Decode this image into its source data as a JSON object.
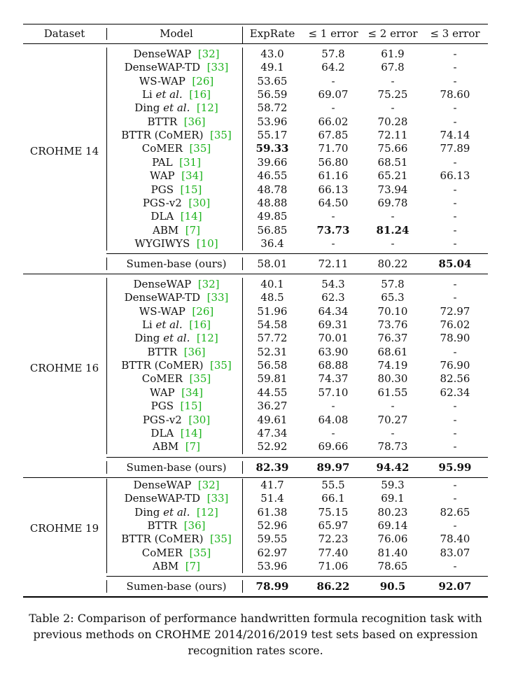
{
  "table": {
    "headers": [
      "Dataset",
      "Model",
      "ExpRate",
      "≤ 1 error",
      "≤ 2 error",
      "≤ 3 error"
    ],
    "sections": [
      {
        "dataset": "CROHME 14",
        "rows": [
          {
            "model": "DenseWAP",
            "cite": "32",
            "values": [
              "43.0",
              "57.8",
              "61.9",
              "-"
            ]
          },
          {
            "model": "DenseWAP-TD",
            "cite": "33",
            "values": [
              "49.1",
              "64.2",
              "67.8",
              "-"
            ]
          },
          {
            "model": "WS-WAP",
            "cite": "26",
            "values": [
              "53.65",
              "-",
              "-",
              "-"
            ]
          },
          {
            "model": "Li et al.",
            "cite": "16",
            "values": [
              "56.59",
              "69.07",
              "75.25",
              "78.60"
            ]
          },
          {
            "model": "Ding et al.",
            "cite": "12",
            "values": [
              "58.72",
              "-",
              "-",
              "-"
            ]
          },
          {
            "model": "BTTR",
            "cite": "36",
            "values": [
              "53.96",
              "66.02",
              "70.28",
              "-"
            ]
          },
          {
            "model": "BTTR (CoMER)",
            "cite": "35",
            "values": [
              "55.17",
              "67.85",
              "72.11",
              "74.14"
            ]
          },
          {
            "model": "CoMER",
            "cite": "35",
            "values": [
              "59.33",
              "71.70",
              "75.66",
              "77.89"
            ],
            "bold": [
              0
            ]
          },
          {
            "model": "PAL",
            "cite": "31",
            "values": [
              "39.66",
              "56.80",
              "68.51",
              "-"
            ]
          },
          {
            "model": "WAP",
            "cite": "34",
            "values": [
              "46.55",
              "61.16",
              "65.21",
              "66.13"
            ]
          },
          {
            "model": "PGS",
            "cite": "15",
            "values": [
              "48.78",
              "66.13",
              "73.94",
              "-"
            ]
          },
          {
            "model": "PGS-v2",
            "cite": "30",
            "values": [
              "48.88",
              "64.50",
              "69.78",
              "-"
            ]
          },
          {
            "model": "DLA",
            "cite": "14",
            "values": [
              "49.85",
              "-",
              "-",
              "-"
            ]
          },
          {
            "model": "ABM",
            "cite": "7",
            "values": [
              "56.85",
              "73.73",
              "81.24",
              "-"
            ],
            "bold": [
              1,
              2
            ]
          },
          {
            "model": "WYGIWYS",
            "cite": "10",
            "values": [
              "36.4",
              "-",
              "-",
              "-"
            ]
          }
        ],
        "ours": {
          "model": "Sumen-base (ours)",
          "values": [
            "58.01",
            "72.11",
            "80.22",
            "85.04"
          ],
          "bold": [
            3
          ]
        }
      },
      {
        "dataset": "CROHME 16",
        "rows": [
          {
            "model": "DenseWAP",
            "cite": "32",
            "values": [
              "40.1",
              "54.3",
              "57.8",
              "-"
            ]
          },
          {
            "model": "DenseWAP-TD",
            "cite": "33",
            "values": [
              "48.5",
              "62.3",
              "65.3",
              "-"
            ]
          },
          {
            "model": "WS-WAP",
            "cite": "26",
            "values": [
              "51.96",
              "64.34",
              "70.10",
              "72.97"
            ]
          },
          {
            "model": "Li et al.",
            "cite": "16",
            "values": [
              "54.58",
              "69.31",
              "73.76",
              "76.02"
            ]
          },
          {
            "model": "Ding et al.",
            "cite": "12",
            "values": [
              "57.72",
              "70.01",
              "76.37",
              "78.90"
            ]
          },
          {
            "model": "BTTR",
            "cite": "36",
            "values": [
              "52.31",
              "63.90",
              "68.61",
              "-"
            ]
          },
          {
            "model": "BTTR (CoMER)",
            "cite": "35",
            "values": [
              "56.58",
              "68.88",
              "74.19",
              "76.90"
            ]
          },
          {
            "model": "CoMER",
            "cite": "35",
            "values": [
              "59.81",
              "74.37",
              "80.30",
              "82.56"
            ]
          },
          {
            "model": "WAP",
            "cite": "34",
            "values": [
              "44.55",
              "57.10",
              "61.55",
              "62.34"
            ]
          },
          {
            "model": "PGS",
            "cite": "15",
            "values": [
              "36.27",
              "-",
              "-",
              "-"
            ]
          },
          {
            "model": "PGS-v2",
            "cite": "30",
            "values": [
              "49.61",
              "64.08",
              "70.27",
              "-"
            ]
          },
          {
            "model": "DLA",
            "cite": "14",
            "values": [
              "47.34",
              "-",
              "-",
              "-"
            ]
          },
          {
            "model": "ABM",
            "cite": "7",
            "values": [
              "52.92",
              "69.66",
              "78.73",
              "-"
            ]
          }
        ],
        "ours": {
          "model": "Sumen-base (ours)",
          "values": [
            "82.39",
            "89.97",
            "94.42",
            "95.99"
          ],
          "bold": [
            0,
            1,
            2,
            3
          ]
        }
      },
      {
        "dataset": "CROHME 19",
        "rows": [
          {
            "model": "DenseWAP",
            "cite": "32",
            "values": [
              "41.7",
              "55.5",
              "59.3",
              "-"
            ]
          },
          {
            "model": "DenseWAP-TD",
            "cite": "33",
            "values": [
              "51.4",
              "66.1",
              "69.1",
              "-"
            ]
          },
          {
            "model": "Ding et al.",
            "cite": "12",
            "values": [
              "61.38",
              "75.15",
              "80.23",
              "82.65"
            ]
          },
          {
            "model": "BTTR",
            "cite": "36",
            "values": [
              "52.96",
              "65.97",
              "69.14",
              "-"
            ]
          },
          {
            "model": "BTTR (CoMER)",
            "cite": "35",
            "values": [
              "59.55",
              "72.23",
              "76.06",
              "78.40"
            ]
          },
          {
            "model": "CoMER",
            "cite": "35",
            "values": [
              "62.97",
              "77.40",
              "81.40",
              "83.07"
            ]
          },
          {
            "model": "ABM",
            "cite": "7",
            "values": [
              "53.96",
              "71.06",
              "78.65",
              "-"
            ]
          }
        ],
        "ours": {
          "model": "Sumen-base (ours)",
          "values": [
            "78.99",
            "86.22",
            "90.5",
            "92.07"
          ],
          "bold": [
            0,
            1,
            2,
            3
          ]
        }
      }
    ]
  },
  "caption": "Table 2: Comparison of performance handwritten formula recognition task with previous methods on CROHME 2014/2016/2019 test sets based on expression recognition rates score."
}
